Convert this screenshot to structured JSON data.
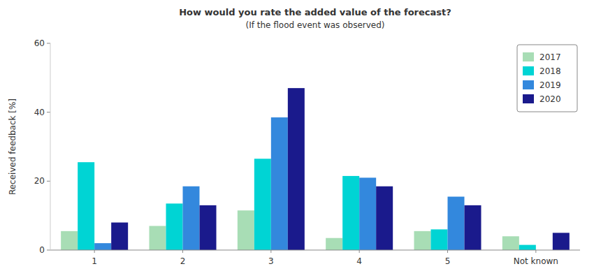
{
  "chart_data": {
    "type": "bar",
    "title": "How would you rate the added value of the forecast?",
    "subtitle": "(If the flood event was observed)",
    "ylabel": "Received feedback [%]",
    "categories": [
      "1",
      "2",
      "3",
      "4",
      "5",
      "Not known"
    ],
    "series": [
      {
        "name": "2017",
        "color": "#a8ddb5",
        "values": [
          5.5,
          7.0,
          11.5,
          3.5,
          5.5,
          4.0
        ]
      },
      {
        "name": "2018",
        "color": "#00d4d4",
        "values": [
          25.5,
          13.5,
          26.5,
          21.5,
          6.0,
          1.5
        ]
      },
      {
        "name": "2019",
        "color": "#3388dd",
        "values": [
          2.0,
          18.5,
          38.5,
          21.0,
          15.5,
          0.0
        ]
      },
      {
        "name": "2020",
        "color": "#1a1a8c",
        "values": [
          8.0,
          13.0,
          47.0,
          18.5,
          13.0,
          5.0
        ]
      }
    ],
    "ylim": [
      0,
      60
    ],
    "yticks": [
      0,
      20,
      40,
      60
    ],
    "grid": false,
    "legend": "upper right"
  }
}
